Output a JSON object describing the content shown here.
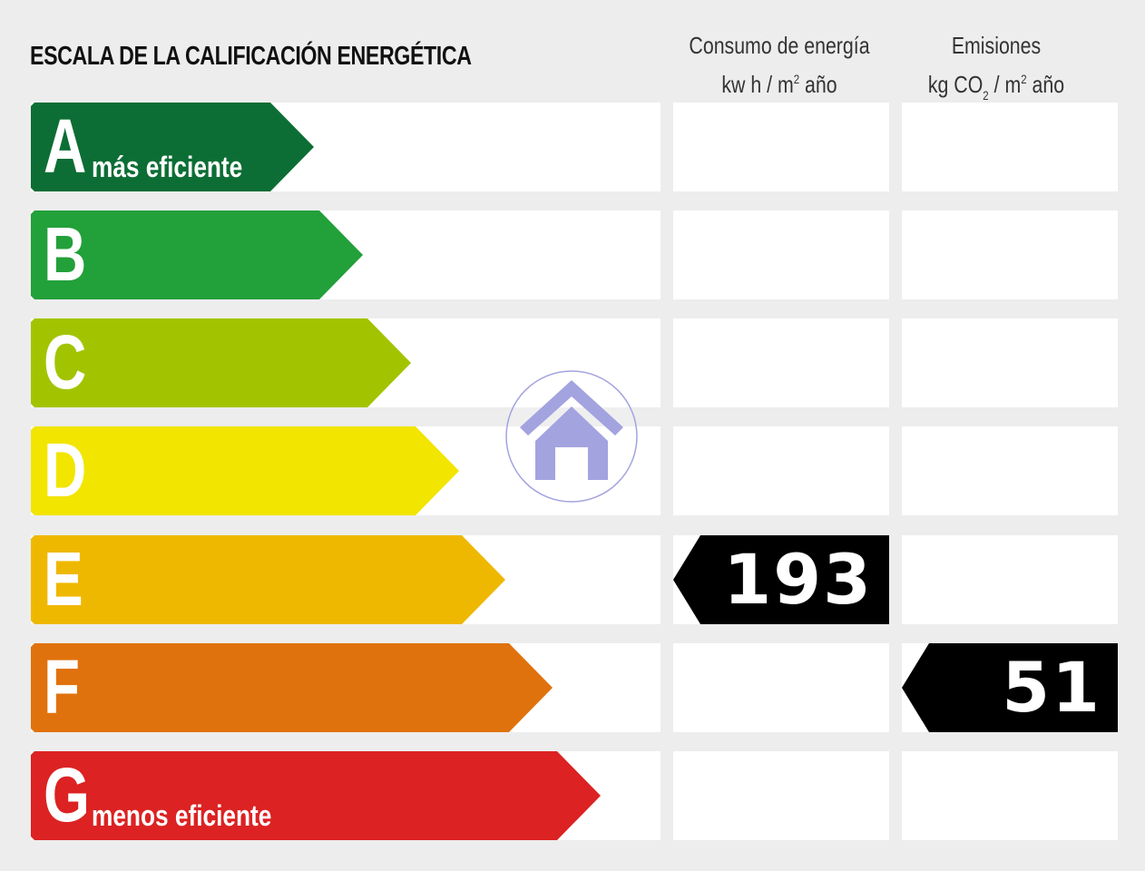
{
  "title": "ESCALA DE LA CALIFICACIÓN ENERGÉTICA",
  "columns": {
    "consumo": {
      "line1": "Consumo de energía",
      "unit_pre": "kw h / m",
      "unit_sup": "2",
      "unit_post": " año"
    },
    "emisiones": {
      "line1": "Emisiones",
      "unit_pre": "kg CO",
      "unit_sub": "2",
      "unit_mid": " / m",
      "unit_sup": "2",
      "unit_post": " año"
    }
  },
  "ratings": [
    {
      "letter": "A",
      "label": "más eficiente",
      "color": "#0c6e35"
    },
    {
      "letter": "B",
      "label": "",
      "color": "#22a03a"
    },
    {
      "letter": "C",
      "label": "",
      "color": "#a2c400"
    },
    {
      "letter": "D",
      "label": "",
      "color": "#f2e500"
    },
    {
      "letter": "E",
      "label": "",
      "color": "#efb800"
    },
    {
      "letter": "F",
      "label": "",
      "color": "#e0720d"
    },
    {
      "letter": "G",
      "label": "menos eficiente",
      "color": "#dc2222"
    }
  ],
  "consumo_rating": {
    "letter": "E",
    "value": "193"
  },
  "emisiones_rating": {
    "letter": "F",
    "value": "51"
  },
  "watermark_icon": "house-icon",
  "watermark_color": "#a3a3e0"
}
